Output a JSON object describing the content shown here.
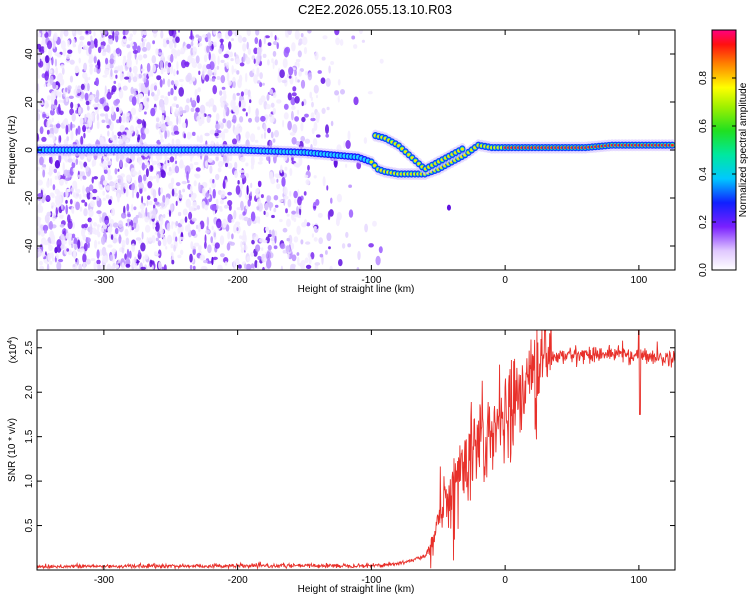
{
  "title": "C2E2.2026.055.13.10.R03",
  "chart_data": [
    {
      "type": "heatmap",
      "xlabel": "Height of straight line (km)",
      "ylabel": "Frequency (Hz)",
      "xlim": [
        -350,
        127
      ],
      "ylim": [
        -50,
        50
      ],
      "xticks": [
        -300,
        -200,
        -100,
        0,
        100
      ],
      "yticks": [
        -40,
        -20,
        0,
        20,
        40
      ],
      "colorbar": {
        "label": "Normalized spectral amplitude",
        "range": [
          0,
          1
        ],
        "ticks": [
          "0.0",
          "0.2",
          "0.4",
          "0.6",
          "0.8"
        ],
        "tick_values": [
          0,
          0.2,
          0.4,
          0.6,
          0.8
        ]
      },
      "ridge": {
        "x": [
          -350,
          -300,
          -250,
          -200,
          -150,
          -130,
          -110,
          -100,
          -95,
          -90,
          -80,
          -70,
          -60,
          -50,
          -40,
          -30,
          -20,
          -10,
          0,
          20,
          40,
          60,
          80,
          100,
          127
        ],
        "y": [
          0,
          0,
          0,
          0,
          -1,
          -2,
          -3,
          -5,
          -8,
          -9,
          -10,
          -10,
          -10,
          -8,
          -5,
          -2,
          2,
          1,
          1,
          1,
          1,
          1,
          2,
          2,
          2
        ]
      },
      "branch": {
        "x": [
          -97,
          -90,
          -80,
          -70,
          -60,
          -50,
          -40,
          -30
        ],
        "y": [
          6,
          5,
          2,
          -3,
          -8,
          -5,
          -2,
          1
        ]
      }
    },
    {
      "type": "line",
      "xlabel": "Height of straight line (km)",
      "ylabel": "SNR (10 * v/v)",
      "exponent_label": "(x10",
      "exponent_power": "4",
      "exponent_close": ")",
      "xlim": [
        -350,
        127
      ],
      "ylim": [
        0,
        27000
      ],
      "xticks": [
        -300,
        -200,
        -100,
        0,
        100
      ],
      "yticks": [
        5000,
        10000,
        15000,
        20000,
        25000
      ],
      "ytick_labels": [
        "0.5",
        "1.0",
        "1.5",
        "2.0",
        "2.5"
      ],
      "color": "#e8302a",
      "series_envelope": {
        "x": [
          -350,
          -100,
          -80,
          -60,
          -55,
          -50,
          -45,
          -40,
          -35,
          -30,
          -25,
          -20,
          -15,
          -10,
          -5,
          0,
          5,
          10,
          15,
          20,
          25,
          30,
          40,
          50,
          60,
          70,
          80,
          90,
          95,
          100,
          105,
          110,
          115,
          120,
          127
        ],
        "y": [
          400,
          500,
          700,
          1500,
          3000,
          5500,
          8000,
          9500,
          11000,
          12000,
          13500,
          14500,
          15500,
          16500,
          17000,
          17500,
          18500,
          19500,
          21000,
          22000,
          23000,
          23500,
          24000,
          24200,
          24300,
          24300,
          24300,
          24400,
          24000,
          24100,
          24200,
          24000,
          24000,
          23800,
          23800
        ]
      }
    }
  ]
}
